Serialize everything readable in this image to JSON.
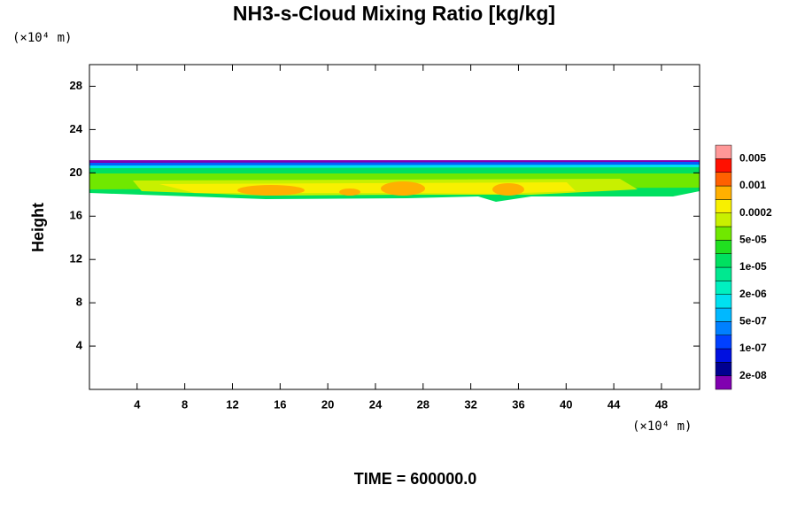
{
  "chart_data": {
    "type": "contour",
    "title": "NH3-s-Cloud Mixing Ratio [kg/kg]",
    "y_label": "Height",
    "x_unit": "(×10⁴ m)",
    "y_unit": "(×10⁴ m)",
    "footer": "TIME = 600000.0",
    "xlim": [
      0,
      51.2
    ],
    "ylim": [
      0,
      30
    ],
    "xticks": [
      4,
      8,
      12,
      16,
      20,
      24,
      28,
      32,
      36,
      40,
      44,
      48
    ],
    "yticks": [
      4,
      8,
      12,
      16,
      20,
      24,
      28
    ],
    "colorbar": {
      "colors": [
        "#8000b0",
        "#000090",
        "#0010e0",
        "#0040ff",
        "#0080ff",
        "#00b8ff",
        "#00e0f0",
        "#00f0c0",
        "#00e890",
        "#00e060",
        "#20e020",
        "#70e800",
        "#c8f000",
        "#f8f000",
        "#ffb000",
        "#ff6000",
        "#ff1000",
        "#ff9898"
      ],
      "ticks": [
        {
          "value": 2e-08,
          "label": "2e-08"
        },
        {
          "value": 1e-07,
          "label": "1e-07"
        },
        {
          "value": 5e-07,
          "label": "5e-07"
        },
        {
          "value": 2e-06,
          "label": "2e-06"
        },
        {
          "value": 1e-05,
          "label": "1e-05"
        },
        {
          "value": 5e-05,
          "label": "5e-05"
        },
        {
          "value": 0.0002,
          "label": "0.0002"
        },
        {
          "value": 0.001,
          "label": "0.001"
        },
        {
          "value": 0.005,
          "label": "0.005"
        }
      ]
    }
  }
}
